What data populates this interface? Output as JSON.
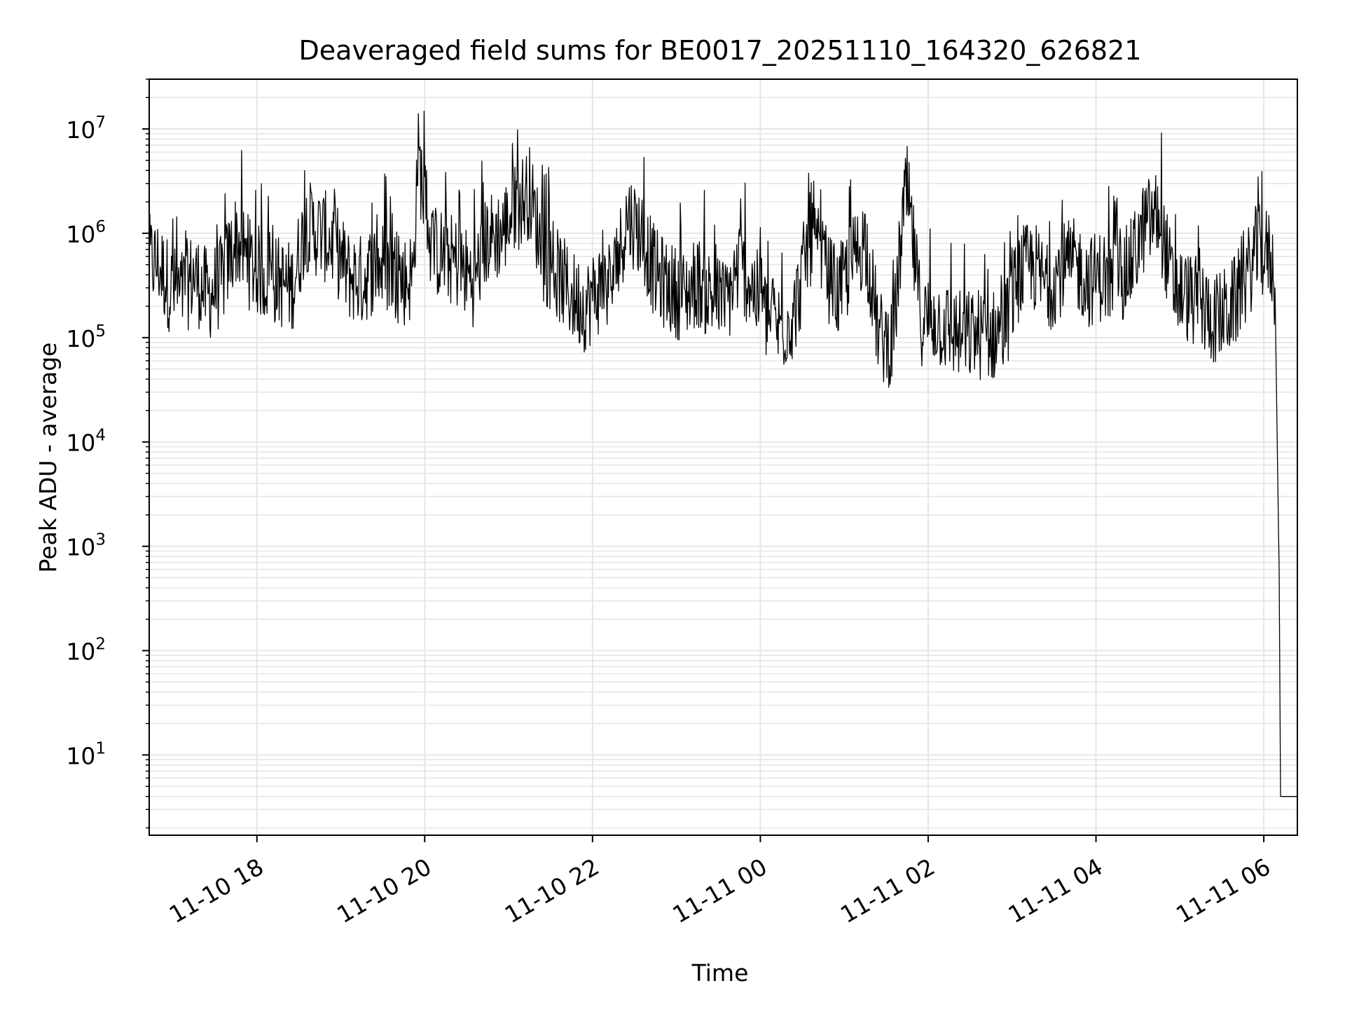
{
  "chart_data": {
    "type": "line",
    "title": "Deaveraged field sums for BE0017_20251110_164320_626821",
    "xlabel": "Time",
    "ylabel": "Peak ADU - average",
    "xscale": "time",
    "yscale": "log",
    "xlim": [
      "2025-11-10 16:43",
      "2025-11-11 06:24"
    ],
    "ylim": [
      1.7,
      30000000
    ],
    "grid": "on (major and minor)",
    "legend": "none",
    "line_color": "#000000",
    "x_ticks": [
      {
        "value": "2025-11-10 18:00",
        "label": "11-10 18"
      },
      {
        "value": "2025-11-10 20:00",
        "label": "11-10 20"
      },
      {
        "value": "2025-11-10 22:00",
        "label": "11-10 22"
      },
      {
        "value": "2025-11-11 00:00",
        "label": "11-11 00"
      },
      {
        "value": "2025-11-11 02:00",
        "label": "11-11 02"
      },
      {
        "value": "2025-11-11 04:00",
        "label": "11-11 04"
      },
      {
        "value": "2025-11-11 06:00",
        "label": "11-11 06"
      }
    ],
    "y_ticks": [
      {
        "value": 10,
        "base": "10",
        "exp": "1"
      },
      {
        "value": 100,
        "base": "10",
        "exp": "2"
      },
      {
        "value": 1000,
        "base": "10",
        "exp": "3"
      },
      {
        "value": 10000,
        "base": "10",
        "exp": "4"
      },
      {
        "value": 100000,
        "base": "10",
        "exp": "5"
      },
      {
        "value": 1000000,
        "base": "10",
        "exp": "6"
      },
      {
        "value": 10000000,
        "base": "10",
        "exp": "7"
      }
    ],
    "series": [
      {
        "x": [
          "2025-11-10 16:43",
          "2025-11-10 16:50",
          "2025-11-10 16:58",
          "2025-11-10 17:05",
          "2025-11-10 17:15",
          "2025-11-10 17:25",
          "2025-11-10 17:35",
          "2025-11-10 17:45",
          "2025-11-10 17:55",
          "2025-11-10 18:05",
          "2025-11-10 18:15",
          "2025-11-10 18:25",
          "2025-11-10 18:35",
          "2025-11-10 18:45",
          "2025-11-10 18:55",
          "2025-11-10 19:05",
          "2025-11-10 19:15",
          "2025-11-10 19:25",
          "2025-11-10 19:35",
          "2025-11-10 19:45",
          "2025-11-10 19:52",
          "2025-11-10 19:55",
          "2025-11-10 20:05",
          "2025-11-10 20:15",
          "2025-11-10 20:25",
          "2025-11-10 20:35",
          "2025-11-10 20:45",
          "2025-11-10 20:55",
          "2025-11-10 21:05",
          "2025-11-10 21:15",
          "2025-11-10 21:25",
          "2025-11-10 21:35",
          "2025-11-10 21:45",
          "2025-11-10 21:55",
          "2025-11-10 22:05",
          "2025-11-10 22:15",
          "2025-11-10 22:25",
          "2025-11-10 22:35",
          "2025-11-10 22:45",
          "2025-11-10 22:55",
          "2025-11-10 23:05",
          "2025-11-10 23:15",
          "2025-11-10 23:25",
          "2025-11-10 23:35",
          "2025-11-10 23:45",
          "2025-11-10 23:55",
          "2025-11-11 00:05",
          "2025-11-11 00:15",
          "2025-11-11 00:25",
          "2025-11-11 00:35",
          "2025-11-11 00:45",
          "2025-11-11 00:55",
          "2025-11-11 01:05",
          "2025-11-11 01:15",
          "2025-11-11 01:25",
          "2025-11-11 01:35",
          "2025-11-11 01:42",
          "2025-11-11 01:45",
          "2025-11-11 01:55",
          "2025-11-11 02:05",
          "2025-11-11 02:15",
          "2025-11-11 02:25",
          "2025-11-11 02:35",
          "2025-11-11 02:45",
          "2025-11-11 02:55",
          "2025-11-11 03:05",
          "2025-11-11 03:15",
          "2025-11-11 03:25",
          "2025-11-11 03:35",
          "2025-11-11 03:45",
          "2025-11-11 03:55",
          "2025-11-11 04:05",
          "2025-11-11 04:15",
          "2025-11-11 04:25",
          "2025-11-11 04:35",
          "2025-11-11 04:45",
          "2025-11-11 04:55",
          "2025-11-11 05:05",
          "2025-11-11 05:15",
          "2025-11-11 05:25",
          "2025-11-11 05:35",
          "2025-11-11 05:45",
          "2025-11-11 05:55",
          "2025-11-11 06:05",
          "2025-11-11 06:08",
          "2025-11-11 06:10",
          "2025-11-11 06:11",
          "2025-11-11 06:12",
          "2025-11-11 06:24"
        ],
        "values": [
          550000,
          500000,
          300000,
          250000,
          400000,
          250000,
          350000,
          900000,
          500000,
          400000,
          350000,
          300000,
          1200000,
          1000000,
          800000,
          400000,
          350000,
          500000,
          450000,
          350000,
          400000,
          6000000,
          700000,
          600000,
          500000,
          350000,
          900000,
          1000000,
          1800000,
          2500000,
          600000,
          400000,
          250000,
          200000,
          300000,
          350000,
          1500000,
          1000000,
          400000,
          300000,
          250000,
          350000,
          250000,
          200000,
          500000,
          300000,
          150000,
          120000,
          180000,
          900000,
          500000,
          250000,
          500000,
          900000,
          100000,
          90000,
          1500000,
          2500000,
          150000,
          150000,
          120000,
          100000,
          110000,
          100000,
          130000,
          400000,
          500000,
          300000,
          450000,
          500000,
          350000,
          400000,
          300000,
          500000,
          1200000,
          1500000,
          300000,
          250000,
          200000,
          150000,
          180000,
          300000,
          700000,
          600000,
          300000,
          4000,
          600,
          4,
          4
        ]
      }
    ]
  }
}
